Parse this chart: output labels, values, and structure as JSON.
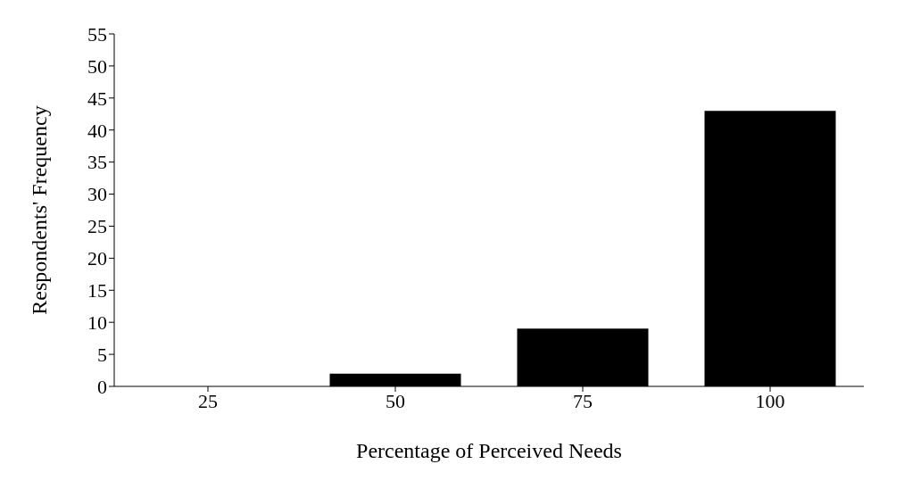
{
  "chart_data": {
    "type": "bar",
    "xlabel": "Percentage of Perceived Needs",
    "ylabel": "Respondents' Frequency",
    "categories": [
      "25",
      "50",
      "75",
      "100"
    ],
    "values": [
      0,
      2,
      9,
      43
    ],
    "color": "#000000",
    "ylim": [
      0,
      55
    ],
    "yticks": [
      0,
      5,
      10,
      15,
      20,
      25,
      30,
      35,
      40,
      45,
      50,
      55
    ],
    "grid": false,
    "legend": false
  }
}
